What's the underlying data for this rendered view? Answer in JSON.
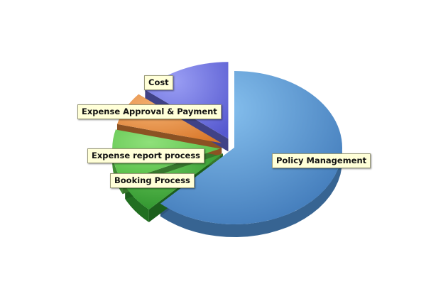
{
  "chart_data": {
    "type": "pie",
    "title": "",
    "slices": [
      {
        "label": "Policy Management",
        "value": 62,
        "color": "#4f8fd0",
        "exploded": false
      },
      {
        "label": "Booking Process",
        "value": 6,
        "color": "#2f9e2f",
        "exploded": true
      },
      {
        "label": "Expense report process",
        "value": 11,
        "color": "#5cc74a",
        "exploded": true
      },
      {
        "label": "Expense Approval & Payment",
        "value": 7,
        "color": "#e8893a",
        "exploded": true
      },
      {
        "label": "Cost",
        "value": 14,
        "color": "#6a6ee0",
        "exploded": true
      }
    ],
    "style": "3d"
  }
}
